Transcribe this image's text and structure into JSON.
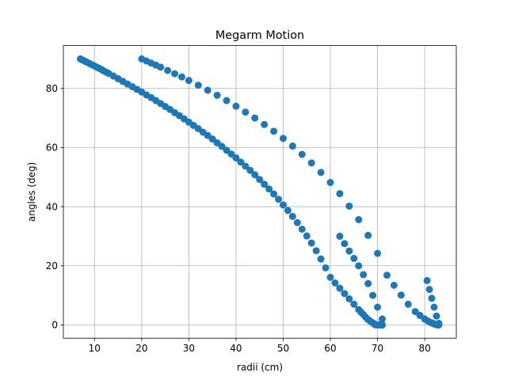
{
  "chart_data": {
    "type": "scatter",
    "title": "Megarm Motion",
    "xlabel": "radii (cm)",
    "ylabel": "angles (deg)",
    "xlim": [
      3.4,
      86.7
    ],
    "ylim": [
      -4.5,
      94.5
    ],
    "xticks": [
      10,
      20,
      30,
      40,
      50,
      60,
      70,
      80
    ],
    "yticks": [
      0,
      20,
      40,
      60,
      80
    ],
    "grid": true,
    "marker_color": "#1f77b4",
    "series": [
      {
        "x": [
          7.0,
          7.5,
          8.0,
          8.5,
          9.0,
          9.5,
          10.0,
          10.5,
          11.0,
          11.5,
          12.0,
          12.5,
          13.0,
          14.0,
          15.0,
          16.0,
          17.0,
          18.0,
          19.0,
          20.0,
          21.0,
          22.0,
          23.0,
          24.0,
          25.0,
          26.0,
          27.0,
          28.0,
          29.0,
          30.0,
          31.0,
          32.0,
          33.0,
          34.0,
          35.0,
          36.0,
          37.0,
          38.0,
          39.0,
          40.0,
          41.0,
          42.0,
          43.0,
          44.0,
          45.0,
          46.0,
          47.0,
          48.0,
          49.0,
          50.0,
          51.0,
          52.0,
          53.0,
          54.0,
          55.0,
          56.0,
          57.0,
          58.0,
          59.0,
          60.0,
          61.0,
          62.0,
          63.0,
          64.0,
          65.0,
          66.0,
          66.5,
          67.0,
          67.5,
          68.0,
          68.5,
          69.0,
          69.3,
          69.6,
          69.9,
          70.2,
          70.4,
          70.6,
          70.7,
          70.8,
          70.9,
          71.0,
          71.0,
          71.0
        ],
        "y": [
          90.0,
          89.6,
          89.2,
          88.8,
          88.4,
          88.0,
          87.6,
          87.2,
          86.8,
          86.4,
          85.9,
          85.5,
          85.1,
          84.2,
          83.3,
          82.4,
          81.5,
          80.6,
          79.7,
          78.8,
          77.8,
          76.9,
          75.9,
          74.9,
          73.9,
          72.9,
          71.8,
          70.8,
          69.7,
          68.6,
          67.5,
          66.4,
          65.2,
          64.1,
          62.9,
          61.6,
          60.4,
          59.1,
          57.8,
          56.5,
          55.1,
          53.7,
          52.3,
          50.8,
          49.2,
          47.6,
          46.0,
          44.3,
          42.5,
          40.6,
          38.7,
          36.7,
          34.6,
          32.4,
          30.1,
          27.7,
          25.1,
          22.3,
          19.3,
          16.1,
          14.2,
          12.4,
          10.6,
          8.8,
          7.0,
          5.2,
          4.3,
          3.5,
          2.6,
          1.8,
          1.2,
          0.7,
          0.3,
          0.0,
          0.0,
          0.0,
          0.0,
          0.0,
          0.0,
          0.0,
          0.0,
          0.0,
          0.0,
          0.0
        ]
      },
      {
        "x": [
          20.0,
          21.0,
          22.0,
          23.0,
          24.0,
          25.5,
          27.0,
          28.5,
          30.0,
          32.0,
          34.0,
          36.0,
          38.0,
          40.0,
          42.0,
          44.0,
          46.0,
          48.0,
          50.0,
          52.0,
          54.0,
          56.0,
          58.0,
          60.0,
          62.0,
          64.0,
          66.0,
          68.0,
          70.0,
          72.0,
          73.5,
          75.0,
          76.5,
          78.0,
          79.0,
          80.0,
          80.7,
          81.3,
          81.8,
          82.2,
          82.5,
          82.7,
          82.9,
          83.0
        ],
        "y": [
          90.0,
          89.3,
          88.6,
          87.9,
          87.2,
          86.1,
          85.0,
          83.9,
          82.7,
          81.1,
          79.4,
          77.7,
          75.9,
          74.0,
          72.0,
          70.0,
          67.8,
          65.5,
          63.1,
          60.5,
          57.7,
          54.8,
          51.6,
          48.2,
          44.4,
          40.2,
          35.6,
          30.3,
          24.2,
          16.8,
          13.4,
          10.1,
          7.0,
          4.5,
          3.2,
          2.0,
          1.3,
          0.8,
          0.5,
          0.2,
          0.1,
          0.0,
          0.0,
          0.0
        ]
      },
      {
        "x": [
          62.0,
          63.0,
          64.0,
          65.0,
          66.0,
          67.0,
          68.0,
          69.0,
          70.0,
          71.0
        ],
        "y": [
          30.0,
          27.5,
          25.0,
          22.5,
          20.0,
          17.0,
          14.0,
          10.0,
          6.0,
          2.0
        ]
      },
      {
        "x": [
          80.5,
          81.0,
          81.5,
          82.0,
          82.5,
          83.0
        ],
        "y": [
          15.0,
          12.0,
          9.0,
          6.0,
          3.0,
          0.5
        ]
      }
    ]
  }
}
